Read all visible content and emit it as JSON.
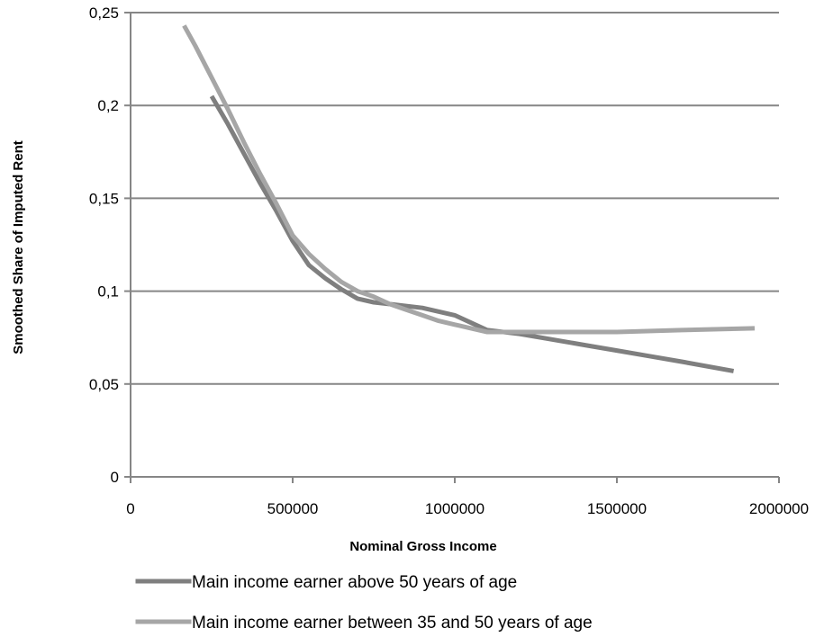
{
  "chart_data": {
    "type": "line",
    "title": "",
    "xlabel": "Nominal Gross Income",
    "ylabel": "Smoothed Share of Imputed Rent",
    "xlim": [
      0,
      2000000
    ],
    "ylim": [
      0,
      0.25
    ],
    "x_ticks": [
      0,
      500000,
      1000000,
      1500000,
      2000000
    ],
    "x_tick_labels": [
      "0",
      "500000",
      "1000000",
      "1500000",
      "2000000"
    ],
    "y_ticks": [
      0,
      0.05,
      0.1,
      0.15,
      0.2,
      0.25
    ],
    "y_tick_labels": [
      "0",
      "0,05",
      "0,1",
      "0,15",
      "0,2",
      "0,25"
    ],
    "grid": "horizontal",
    "legend_position": "bottom",
    "series": [
      {
        "name": "Main income earner above 50 years of age",
        "color": "#7f7f7f",
        "points": [
          [
            250000,
            0.205
          ],
          [
            300000,
            0.19
          ],
          [
            350000,
            0.174
          ],
          [
            400000,
            0.158
          ],
          [
            450000,
            0.143
          ],
          [
            500000,
            0.127
          ],
          [
            550000,
            0.114
          ],
          [
            600000,
            0.107
          ],
          [
            650000,
            0.101
          ],
          [
            700000,
            0.096
          ],
          [
            750000,
            0.094
          ],
          [
            800000,
            0.093
          ],
          [
            850000,
            0.092
          ],
          [
            900000,
            0.091
          ],
          [
            950000,
            0.089
          ],
          [
            1000000,
            0.087
          ],
          [
            1050000,
            0.083
          ],
          [
            1100000,
            0.079
          ],
          [
            1200000,
            0.077
          ],
          [
            1300000,
            0.074
          ],
          [
            1400000,
            0.071
          ],
          [
            1500000,
            0.068
          ],
          [
            1600000,
            0.065
          ],
          [
            1700000,
            0.062
          ],
          [
            1860000,
            0.057
          ]
        ]
      },
      {
        "name": "Main income earner between 35 and 50 years of age",
        "color": "#a6a6a6",
        "points": [
          [
            165000,
            0.243
          ],
          [
            200000,
            0.232
          ],
          [
            250000,
            0.215
          ],
          [
            300000,
            0.198
          ],
          [
            350000,
            0.18
          ],
          [
            400000,
            0.163
          ],
          [
            450000,
            0.147
          ],
          [
            500000,
            0.13
          ],
          [
            550000,
            0.12
          ],
          [
            600000,
            0.112
          ],
          [
            650000,
            0.105
          ],
          [
            700000,
            0.1
          ],
          [
            750000,
            0.097
          ],
          [
            800000,
            0.093
          ],
          [
            850000,
            0.09
          ],
          [
            900000,
            0.087
          ],
          [
            950000,
            0.084
          ],
          [
            1000000,
            0.082
          ],
          [
            1050000,
            0.08
          ],
          [
            1100000,
            0.078
          ],
          [
            1300000,
            0.078
          ],
          [
            1500000,
            0.078
          ],
          [
            1700000,
            0.079
          ],
          [
            1925000,
            0.08
          ]
        ]
      }
    ]
  }
}
